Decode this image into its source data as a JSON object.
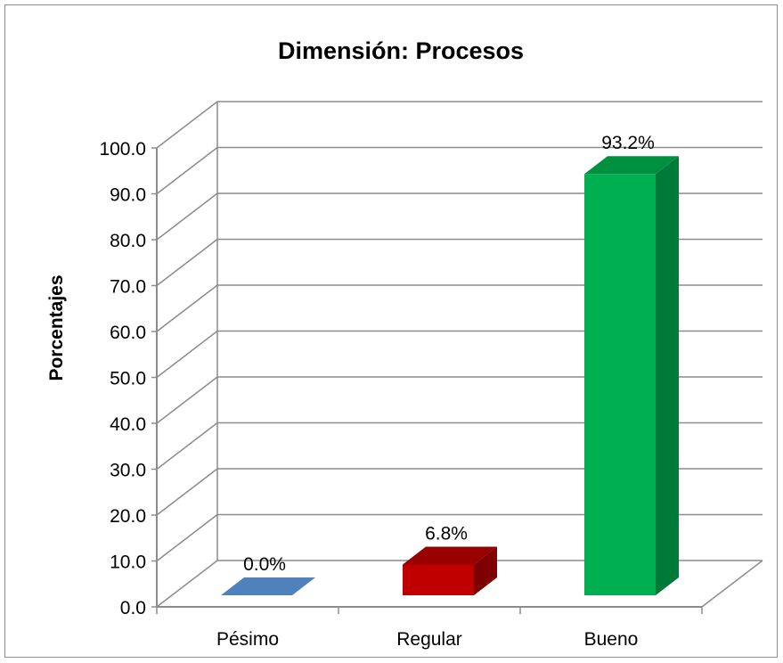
{
  "chart_data": {
    "type": "bar",
    "title": "Dimensión: Procesos",
    "xlabel": "",
    "ylabel": "Porcentajes",
    "categories": [
      "Pésimo",
      "Regular",
      "Bueno"
    ],
    "values": [
      0.0,
      6.8,
      93.2
    ],
    "data_labels": [
      "0.0%",
      "6.8%",
      "93.2%"
    ],
    "ylim": [
      0,
      100
    ],
    "yticks": [
      0,
      10,
      20,
      30,
      40,
      50,
      60,
      70,
      80,
      90,
      100
    ],
    "ytick_labels": [
      "0.0",
      "10.0",
      "20.0",
      "30.0",
      "40.0",
      "50.0",
      "60.0",
      "70.0",
      "80.0",
      "90.0",
      "100.0"
    ],
    "grid": true,
    "legend": "none",
    "style": "3d-column",
    "colors": {
      "Pésimo": {
        "front": "#4f81bd",
        "side": "#385d8a",
        "top": "#4f81bd"
      },
      "Regular": {
        "front": "#c00000",
        "side": "#7f0000",
        "top": "#990000"
      },
      "Bueno": {
        "front": "#00b050",
        "side": "#007a38",
        "top": "#00913f"
      }
    },
    "gridline_color": "#8c8c8c"
  }
}
